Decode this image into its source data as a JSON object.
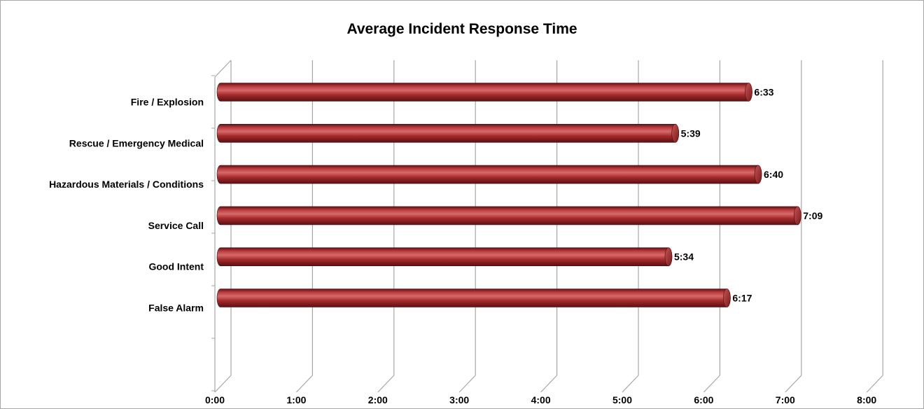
{
  "chart_data": {
    "type": "bar",
    "orientation": "horizontal",
    "title": "Average Incident Response Time",
    "xlabel": "",
    "ylabel": "",
    "categories": [
      "Fire / Explosion",
      "Rescue / Emergency Medical",
      "Hazardous Materials / Conditions",
      "Service Call",
      "Good Intent",
      "False Alarm"
    ],
    "values_seconds": [
      393,
      339,
      400,
      429,
      334,
      377
    ],
    "value_labels": [
      "6:33",
      "5:39",
      "6:40",
      "7:09",
      "5:34",
      "6:17"
    ],
    "x_ticks": [
      "0:00",
      "1:00",
      "2:00",
      "3:00",
      "4:00",
      "5:00",
      "6:00",
      "7:00",
      "8:00"
    ],
    "xlim_seconds": [
      0,
      480
    ],
    "grid": true,
    "legend": "none",
    "style": "3d-cylinder",
    "bar_color": "#a4282a"
  }
}
